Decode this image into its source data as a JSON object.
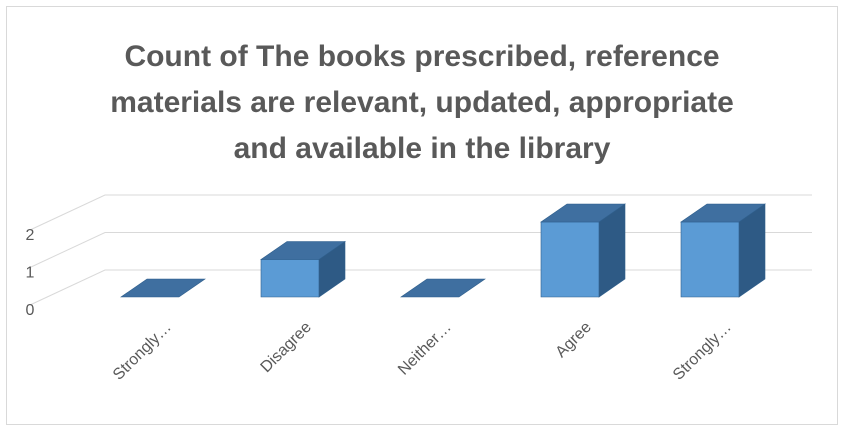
{
  "chart_data": {
    "type": "bar3d",
    "title": "Count of The books prescribed, reference materials are relevant, updated, appropriate and available in the library",
    "categories": [
      "Strongly…",
      "Disagree",
      "Neither…",
      "Agree",
      "Strongly…"
    ],
    "values": [
      0,
      1,
      0,
      2,
      2
    ],
    "color": "#5b9bd5",
    "ylim": [
      0,
      2
    ],
    "yticks": [
      0,
      1,
      2
    ],
    "grid": true
  }
}
